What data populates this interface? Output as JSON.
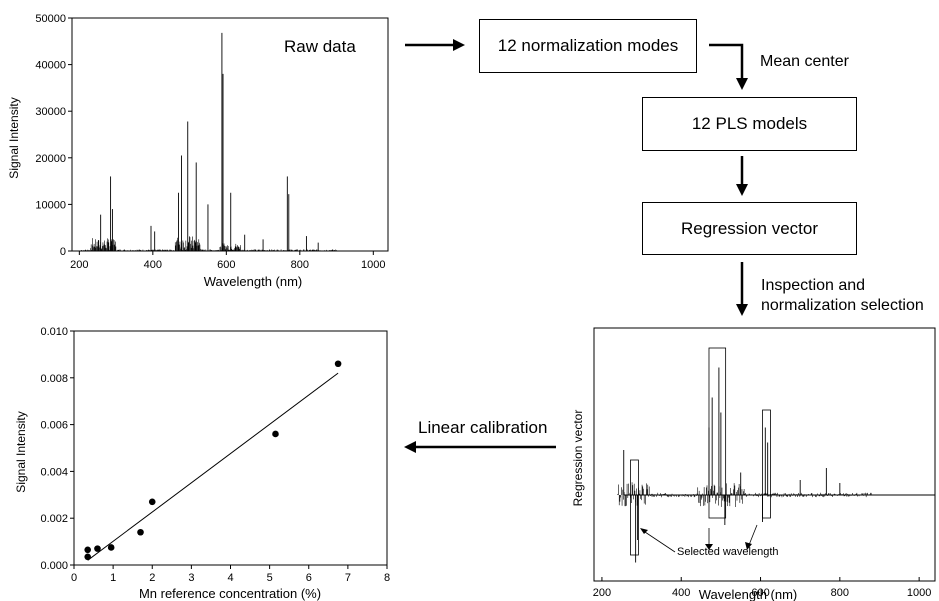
{
  "labels": {
    "raw_data": "Raw data",
    "normalization_modes": "12 normalization modes",
    "mean_center": "Mean center",
    "pls_models": "12 PLS models",
    "regression_vector": "Regression vector",
    "inspection_line1": "Inspection and",
    "inspection_line2": "normalization selection",
    "linear_calibration": "Linear calibration",
    "selected_wavelength": "Selected wavelength"
  },
  "chart_data": [
    {
      "id": "raw-spectrum",
      "type": "line",
      "xlabel": "Wavelength (nm)",
      "ylabel": "Signal Intensity",
      "xlim": [
        180,
        1040
      ],
      "ylim": [
        0,
        50000
      ],
      "xticks": [
        "200",
        "400",
        "600",
        "800",
        "1000"
      ],
      "yticks": [
        "0",
        "10000",
        "20000",
        "30000",
        "40000",
        "50000"
      ],
      "peaks": [
        {
          "x": 258,
          "y": 7800
        },
        {
          "x": 285,
          "y": 16000
        },
        {
          "x": 290,
          "y": 9000
        },
        {
          "x": 395,
          "y": 5400
        },
        {
          "x": 405,
          "y": 4200
        },
        {
          "x": 470,
          "y": 12500
        },
        {
          "x": 478,
          "y": 20500
        },
        {
          "x": 495,
          "y": 27800
        },
        {
          "x": 518,
          "y": 19000
        },
        {
          "x": 550,
          "y": 10000
        },
        {
          "x": 588,
          "y": 46800
        },
        {
          "x": 591,
          "y": 38000
        },
        {
          "x": 612,
          "y": 12500
        },
        {
          "x": 650,
          "y": 3500
        },
        {
          "x": 700,
          "y": 2500
        },
        {
          "x": 766,
          "y": 16000
        },
        {
          "x": 770,
          "y": 12200
        },
        {
          "x": 818,
          "y": 3200
        },
        {
          "x": 850,
          "y": 1800
        }
      ]
    },
    {
      "id": "regression-vector-plot",
      "type": "line",
      "xlabel": "Wavelength (nm)",
      "ylabel": "Regression vector",
      "xlim": [
        180,
        1040
      ],
      "xticks": [
        "200",
        "400",
        "600",
        "800",
        "1000"
      ],
      "features": [
        {
          "x": 255,
          "y": 0.3
        },
        {
          "x": 285,
          "y": -0.45
        },
        {
          "x": 290,
          "y": -0.3
        },
        {
          "x": 470,
          "y": 0.45
        },
        {
          "x": 478,
          "y": 0.65
        },
        {
          "x": 495,
          "y": 0.85
        },
        {
          "x": 500,
          "y": 0.55
        },
        {
          "x": 510,
          "y": -0.2
        },
        {
          "x": 550,
          "y": 0.15
        },
        {
          "x": 605,
          "y": -0.18
        },
        {
          "x": 612,
          "y": 0.45
        },
        {
          "x": 618,
          "y": 0.35
        },
        {
          "x": 700,
          "y": 0.1
        },
        {
          "x": 766,
          "y": 0.18
        },
        {
          "x": 800,
          "y": 0.08
        }
      ],
      "selection_boxes": [
        [
          272,
          292
        ],
        [
          470,
          512
        ],
        [
          605,
          625
        ]
      ]
    },
    {
      "id": "calibration-plot",
      "type": "scatter",
      "xlabel": "Mn reference concentration (%)",
      "ylabel": "Signal Intensity",
      "xlim": [
        0,
        8
      ],
      "ylim": [
        0,
        0.01
      ],
      "xticks": [
        "0",
        "1",
        "2",
        "3",
        "4",
        "5",
        "6",
        "7",
        "8"
      ],
      "yticks": [
        "0.000",
        "0.002",
        "0.004",
        "0.006",
        "0.008",
        "0.010"
      ],
      "points": [
        {
          "x": 0.35,
          "y": 0.00035
        },
        {
          "x": 0.35,
          "y": 0.00065
        },
        {
          "x": 0.6,
          "y": 0.0007
        },
        {
          "x": 0.95,
          "y": 0.00075
        },
        {
          "x": 1.7,
          "y": 0.0014
        },
        {
          "x": 2.0,
          "y": 0.0027
        },
        {
          "x": 5.15,
          "y": 0.0056
        },
        {
          "x": 6.75,
          "y": 0.0086
        }
      ],
      "fit_line": [
        {
          "x": 0.35,
          "y": 0.0002
        },
        {
          "x": 6.75,
          "y": 0.0082
        }
      ]
    }
  ]
}
